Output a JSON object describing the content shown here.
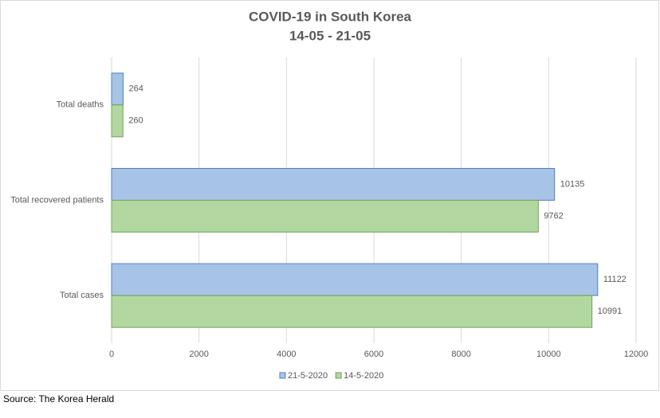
{
  "chart_data": {
    "type": "hbar",
    "title": "COVID-19 in South Korea",
    "subtitle": "14-05 - 21-05",
    "categories": [
      "Total deaths",
      "Total recovered patients",
      "Total cases"
    ],
    "series": [
      {
        "name": "21-5-2020",
        "color": "#a7c3e6",
        "values": [
          264,
          10135,
          11122
        ]
      },
      {
        "name": "14-5-2020",
        "color": "#b3d7a0",
        "values": [
          260,
          9762,
          10991
        ]
      }
    ],
    "xlim": [
      0,
      12000
    ],
    "xticks": [
      0,
      2000,
      4000,
      6000,
      8000,
      10000,
      12000
    ],
    "grid": true,
    "legend": "bottom",
    "source": "Source: The Korea Herald"
  }
}
